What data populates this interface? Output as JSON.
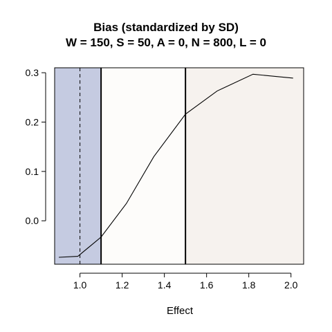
{
  "chart_data": {
    "type": "line",
    "title_lines": [
      "Bias (standardized by SD)",
      "W = 150, S = 50, A = 0, N = 800, L = 0"
    ],
    "xlabel": "Effect",
    "ylabel": "",
    "xlim": [
      0.88,
      2.06
    ],
    "ylim": [
      -0.088,
      0.31
    ],
    "x_ticks": [
      1.0,
      1.2,
      1.4,
      1.6,
      1.8,
      2.0
    ],
    "x_tick_labels": [
      "1.0",
      "1.2",
      "1.4",
      "1.6",
      "1.8",
      "2.0"
    ],
    "y_ticks": [
      0.0,
      0.1,
      0.2,
      0.3
    ],
    "y_tick_labels": [
      "0.0",
      "0.1",
      "0.2",
      "0.3"
    ],
    "grid": false,
    "regions": [
      {
        "from": 0.88,
        "to": 1.1,
        "color": "#c5cbe1"
      },
      {
        "from": 1.1,
        "to": 1.5,
        "color": "#fdfcfa"
      },
      {
        "from": 1.5,
        "to": 2.06,
        "color": "#f6f2ee"
      }
    ],
    "vertical_lines": [
      {
        "x": 1.0,
        "style": "dashed"
      },
      {
        "x": 1.1,
        "style": "solid"
      },
      {
        "x": 1.5,
        "style": "solid"
      }
    ],
    "series": [
      {
        "x": [
          0.9,
          0.99,
          1.1,
          1.22,
          1.35,
          1.5,
          1.65,
          1.82,
          2.01
        ],
        "y": [
          -0.074,
          -0.072,
          -0.033,
          0.035,
          0.13,
          0.216,
          0.263,
          0.297,
          0.289
        ]
      }
    ]
  }
}
